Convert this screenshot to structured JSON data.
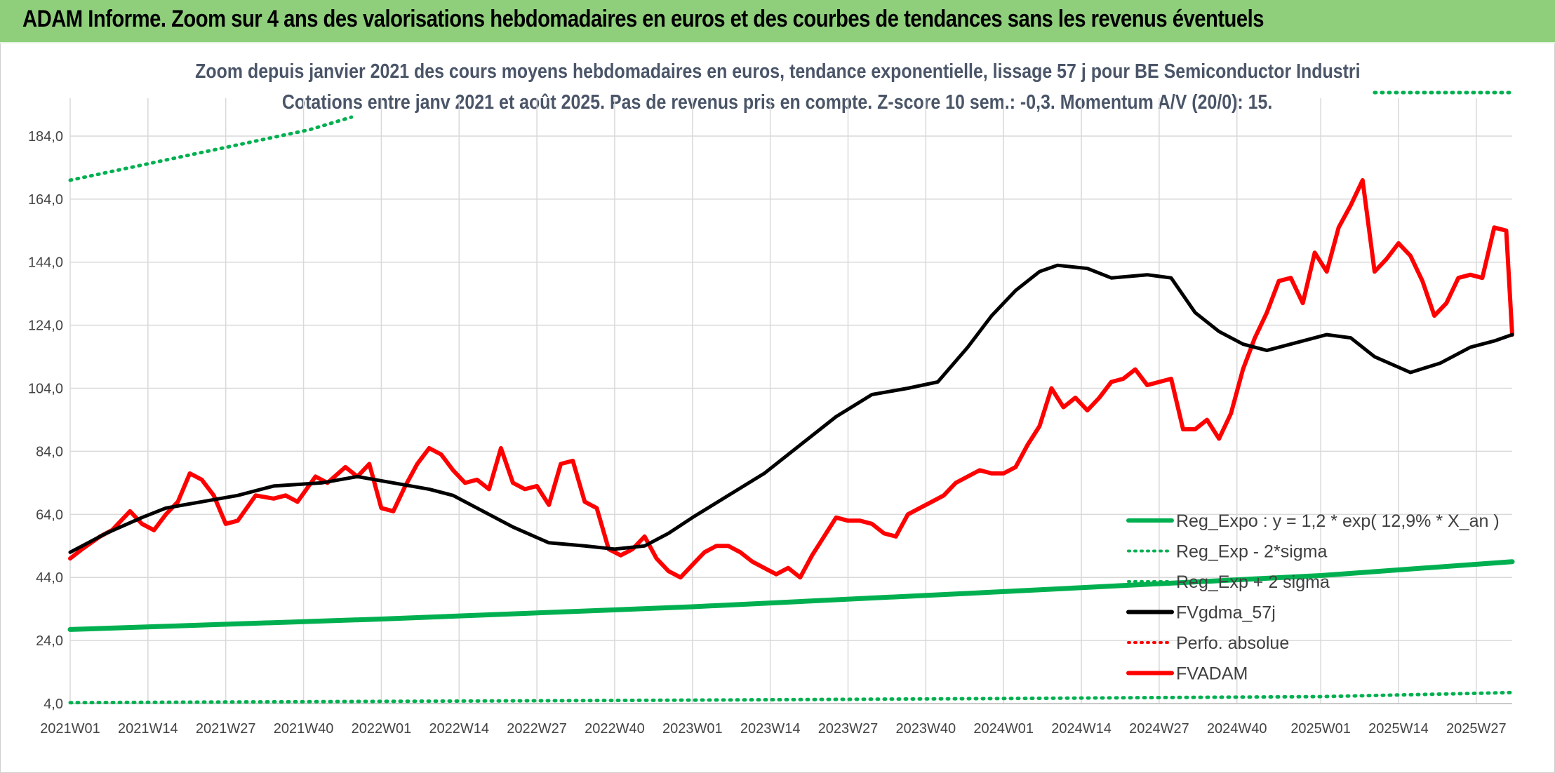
{
  "header": {
    "title": "ADAM Informe. Zoom sur 4 ans des valorisations hebdomadaires en euros et des courbes de tendances sans les revenus éventuels"
  },
  "chart_data": {
    "type": "line",
    "title": "Zoom depuis janvier 2021 des cours moyens hebdomadaires en euros, tendance exponentielle, lissage 57 j pour BE Semiconductor Industri",
    "subtitle": "Cotations entre janv 2021 et août 2025. Pas de revenus pris en compte. Z-score 10 sem.: -0,3. Momentum A/V (20/0): 15.",
    "xlabel": "",
    "ylabel": "",
    "ylim": [
      4,
      196
    ],
    "y_ticks": [
      "4,0",
      "24,0",
      "44,0",
      "64,0",
      "84,0",
      "104,0",
      "124,0",
      "144,0",
      "164,0",
      "184,0"
    ],
    "y_tick_values": [
      4,
      24,
      44,
      64,
      84,
      104,
      124,
      144,
      164,
      184
    ],
    "x_range": [
      0,
      241
    ],
    "x_ticks": [
      "2021W01",
      "2021W14",
      "2021W27",
      "2021W40",
      "2022W01",
      "2022W14",
      "2022W27",
      "2022W40",
      "2023W01",
      "2023W14",
      "2023W27",
      "2023W40",
      "2024W01",
      "2024W14",
      "2024W27",
      "2024W40",
      "2025W01",
      "2025W14",
      "2025W27"
    ],
    "x_tick_positions": [
      0,
      13,
      26,
      39,
      52,
      65,
      78,
      91,
      104,
      117,
      130,
      143,
      156,
      169,
      182,
      195,
      209,
      222,
      235
    ],
    "grid": true,
    "legend_position": "bottom-right",
    "colors": {
      "reg_expo": "#00b050",
      "reg_minus": "#00b050",
      "reg_plus": "#00b050",
      "fvgdma": "#000000",
      "perfo": "#ff0000",
      "fvadam": "#ff0000",
      "grid": "#d9d9d9",
      "banner": "#8fcf7c"
    },
    "series": [
      {
        "name": "Reg_Expo : y = 1,2 * exp( 12,9% *  X_an )",
        "style": "solid-thick",
        "points": [
          [
            0,
            27.5
          ],
          [
            52,
            30.8
          ],
          [
            104,
            34.7
          ],
          [
            156,
            39.5
          ],
          [
            209,
            44.6
          ],
          [
            241,
            49.0
          ]
        ]
      },
      {
        "name": "Reg_Exp - 2*sigma",
        "style": "dotted",
        "points": [
          [
            0,
            4.3
          ],
          [
            52,
            4.7
          ],
          [
            104,
            5.1
          ],
          [
            156,
            5.6
          ],
          [
            209,
            6.2
          ],
          [
            241,
            7.5
          ]
        ]
      },
      {
        "name": "Reg_Exp + 2 sigma",
        "style": "dotted",
        "points": [
          [
            0,
            170
          ],
          [
            20,
            178
          ],
          [
            40,
            186
          ],
          [
            47,
            190
          ]
        ],
        "points_right": [
          [
            218,
            200
          ],
          [
            241,
            200
          ]
        ]
      },
      {
        "name": "FVgdma_57j",
        "style": "solid",
        "points": [
          [
            0,
            52
          ],
          [
            6,
            58
          ],
          [
            12,
            63
          ],
          [
            16,
            66
          ],
          [
            22,
            68
          ],
          [
            28,
            70
          ],
          [
            34,
            73
          ],
          [
            42,
            74
          ],
          [
            48,
            76
          ],
          [
            54,
            74
          ],
          [
            60,
            72
          ],
          [
            64,
            70
          ],
          [
            70,
            64
          ],
          [
            74,
            60
          ],
          [
            80,
            55
          ],
          [
            86,
            54
          ],
          [
            91,
            53
          ],
          [
            96,
            54
          ],
          [
            100,
            58
          ],
          [
            104,
            63
          ],
          [
            110,
            70
          ],
          [
            116,
            77
          ],
          [
            122,
            86
          ],
          [
            128,
            95
          ],
          [
            134,
            102
          ],
          [
            140,
            104
          ],
          [
            145,
            106
          ],
          [
            150,
            117
          ],
          [
            154,
            127
          ],
          [
            158,
            135
          ],
          [
            162,
            141
          ],
          [
            165,
            143
          ],
          [
            170,
            142
          ],
          [
            174,
            139
          ],
          [
            180,
            140
          ],
          [
            184,
            139
          ],
          [
            188,
            128
          ],
          [
            192,
            122
          ],
          [
            196,
            118
          ],
          [
            200,
            116
          ],
          [
            206,
            119
          ],
          [
            210,
            121
          ],
          [
            214,
            120
          ],
          [
            218,
            114
          ],
          [
            224,
            109
          ],
          [
            229,
            112
          ],
          [
            234,
            117
          ],
          [
            238,
            119
          ],
          [
            241,
            121
          ]
        ]
      },
      {
        "name": "Perfo. absolue",
        "style": "dotted",
        "points": []
      },
      {
        "name": "FVADAM",
        "style": "solid-thick",
        "points": [
          [
            0,
            50
          ],
          [
            2,
            53
          ],
          [
            5,
            57
          ],
          [
            7,
            59
          ],
          [
            10,
            65
          ],
          [
            12,
            61
          ],
          [
            14,
            59
          ],
          [
            16,
            64
          ],
          [
            18,
            68
          ],
          [
            20,
            77
          ],
          [
            22,
            75
          ],
          [
            24,
            70
          ],
          [
            26,
            61
          ],
          [
            28,
            62
          ],
          [
            31,
            70
          ],
          [
            34,
            69
          ],
          [
            36,
            70
          ],
          [
            38,
            68
          ],
          [
            41,
            76
          ],
          [
            43,
            74
          ],
          [
            46,
            79
          ],
          [
            48,
            76
          ],
          [
            50,
            80
          ],
          [
            52,
            66
          ],
          [
            54,
            65
          ],
          [
            56,
            73
          ],
          [
            58,
            80
          ],
          [
            60,
            85
          ],
          [
            62,
            83
          ],
          [
            64,
            78
          ],
          [
            66,
            74
          ],
          [
            68,
            75
          ],
          [
            70,
            72
          ],
          [
            72,
            85
          ],
          [
            74,
            74
          ],
          [
            76,
            72
          ],
          [
            78,
            73
          ],
          [
            80,
            67
          ],
          [
            82,
            80
          ],
          [
            84,
            81
          ],
          [
            86,
            68
          ],
          [
            88,
            66
          ],
          [
            90,
            53
          ],
          [
            92,
            51
          ],
          [
            94,
            53
          ],
          [
            96,
            57
          ],
          [
            98,
            50
          ],
          [
            100,
            46
          ],
          [
            102,
            44
          ],
          [
            104,
            48
          ],
          [
            106,
            52
          ],
          [
            108,
            54
          ],
          [
            110,
            54
          ],
          [
            112,
            52
          ],
          [
            114,
            49
          ],
          [
            116,
            47
          ],
          [
            118,
            45
          ],
          [
            120,
            47
          ],
          [
            122,
            44
          ],
          [
            124,
            51
          ],
          [
            126,
            57
          ],
          [
            128,
            63
          ],
          [
            130,
            62
          ],
          [
            132,
            62
          ],
          [
            134,
            61
          ],
          [
            136,
            58
          ],
          [
            138,
            57
          ],
          [
            140,
            64
          ],
          [
            142,
            66
          ],
          [
            144,
            68
          ],
          [
            146,
            70
          ],
          [
            148,
            74
          ],
          [
            150,
            76
          ],
          [
            152,
            78
          ],
          [
            154,
            77
          ],
          [
            156,
            77
          ],
          [
            158,
            79
          ],
          [
            160,
            86
          ],
          [
            162,
            92
          ],
          [
            164,
            104
          ],
          [
            166,
            98
          ],
          [
            168,
            101
          ],
          [
            170,
            97
          ],
          [
            172,
            101
          ],
          [
            174,
            106
          ],
          [
            176,
            107
          ],
          [
            178,
            110
          ],
          [
            180,
            105
          ],
          [
            182,
            106
          ],
          [
            184,
            107
          ],
          [
            186,
            91
          ],
          [
            188,
            91
          ],
          [
            190,
            94
          ],
          [
            192,
            88
          ],
          [
            194,
            96
          ],
          [
            196,
            110
          ],
          [
            198,
            120
          ],
          [
            200,
            128
          ],
          [
            202,
            138
          ],
          [
            204,
            139
          ],
          [
            206,
            131
          ],
          [
            208,
            147
          ],
          [
            210,
            141
          ],
          [
            212,
            155
          ],
          [
            214,
            162
          ],
          [
            216,
            170
          ],
          [
            218,
            141
          ],
          [
            220,
            145
          ],
          [
            222,
            150
          ],
          [
            224,
            146
          ],
          [
            226,
            138
          ],
          [
            228,
            127
          ],
          [
            230,
            131
          ],
          [
            232,
            139
          ],
          [
            234,
            140
          ],
          [
            236,
            139
          ],
          [
            238,
            155
          ],
          [
            240,
            154
          ],
          [
            241,
            121
          ]
        ]
      }
    ]
  },
  "legend": {
    "items": [
      {
        "label": "Reg_Expo : y = 1,2 * exp( 12,9% *  X_an )",
        "style": "solid",
        "color": "#00b050"
      },
      {
        "label": "Reg_Exp - 2*sigma",
        "style": "dotted",
        "color": "#00b050"
      },
      {
        "label": "Reg_Exp + 2 sigma",
        "style": "dotted",
        "color": "#00b050"
      },
      {
        "label": "FVgdma_57j",
        "style": "solid",
        "color": "#000000"
      },
      {
        "label": "Perfo. absolue",
        "style": "dotted",
        "color": "#ff0000"
      },
      {
        "label": "FVADAM",
        "style": "solid",
        "color": "#ff0000"
      }
    ]
  }
}
